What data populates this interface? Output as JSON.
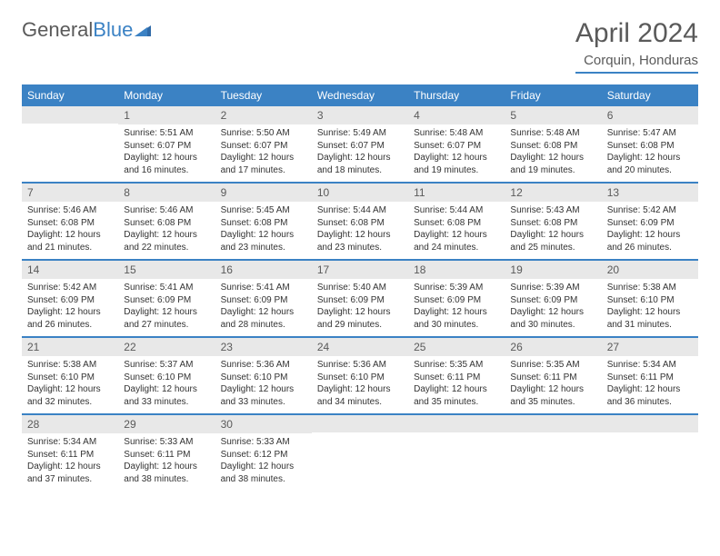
{
  "logo": {
    "text_gray": "General",
    "text_blue": "Blue"
  },
  "title": "April 2024",
  "location": "Corquin, Honduras",
  "colors": {
    "accent": "#3b82c4",
    "header_text": "#ffffff",
    "daynum_bg": "#e8e8e8",
    "text_muted": "#5a5a5a",
    "body_text": "#333333",
    "page_bg": "#ffffff"
  },
  "typography": {
    "title_fontsize": 30,
    "location_fontsize": 15,
    "header_fontsize": 12,
    "daynum_fontsize": 12,
    "info_fontsize": 10
  },
  "day_headers": [
    "Sunday",
    "Monday",
    "Tuesday",
    "Wednesday",
    "Thursday",
    "Friday",
    "Saturday"
  ],
  "weeks": [
    [
      null,
      {
        "n": "1",
        "sunrise": "5:51 AM",
        "sunset": "6:07 PM",
        "daylight": "12 hours and 16 minutes."
      },
      {
        "n": "2",
        "sunrise": "5:50 AM",
        "sunset": "6:07 PM",
        "daylight": "12 hours and 17 minutes."
      },
      {
        "n": "3",
        "sunrise": "5:49 AM",
        "sunset": "6:07 PM",
        "daylight": "12 hours and 18 minutes."
      },
      {
        "n": "4",
        "sunrise": "5:48 AM",
        "sunset": "6:07 PM",
        "daylight": "12 hours and 19 minutes."
      },
      {
        "n": "5",
        "sunrise": "5:48 AM",
        "sunset": "6:08 PM",
        "daylight": "12 hours and 19 minutes."
      },
      {
        "n": "6",
        "sunrise": "5:47 AM",
        "sunset": "6:08 PM",
        "daylight": "12 hours and 20 minutes."
      }
    ],
    [
      {
        "n": "7",
        "sunrise": "5:46 AM",
        "sunset": "6:08 PM",
        "daylight": "12 hours and 21 minutes."
      },
      {
        "n": "8",
        "sunrise": "5:46 AM",
        "sunset": "6:08 PM",
        "daylight": "12 hours and 22 minutes."
      },
      {
        "n": "9",
        "sunrise": "5:45 AM",
        "sunset": "6:08 PM",
        "daylight": "12 hours and 23 minutes."
      },
      {
        "n": "10",
        "sunrise": "5:44 AM",
        "sunset": "6:08 PM",
        "daylight": "12 hours and 23 minutes."
      },
      {
        "n": "11",
        "sunrise": "5:44 AM",
        "sunset": "6:08 PM",
        "daylight": "12 hours and 24 minutes."
      },
      {
        "n": "12",
        "sunrise": "5:43 AM",
        "sunset": "6:08 PM",
        "daylight": "12 hours and 25 minutes."
      },
      {
        "n": "13",
        "sunrise": "5:42 AM",
        "sunset": "6:09 PM",
        "daylight": "12 hours and 26 minutes."
      }
    ],
    [
      {
        "n": "14",
        "sunrise": "5:42 AM",
        "sunset": "6:09 PM",
        "daylight": "12 hours and 26 minutes."
      },
      {
        "n": "15",
        "sunrise": "5:41 AM",
        "sunset": "6:09 PM",
        "daylight": "12 hours and 27 minutes."
      },
      {
        "n": "16",
        "sunrise": "5:41 AM",
        "sunset": "6:09 PM",
        "daylight": "12 hours and 28 minutes."
      },
      {
        "n": "17",
        "sunrise": "5:40 AM",
        "sunset": "6:09 PM",
        "daylight": "12 hours and 29 minutes."
      },
      {
        "n": "18",
        "sunrise": "5:39 AM",
        "sunset": "6:09 PM",
        "daylight": "12 hours and 30 minutes."
      },
      {
        "n": "19",
        "sunrise": "5:39 AM",
        "sunset": "6:09 PM",
        "daylight": "12 hours and 30 minutes."
      },
      {
        "n": "20",
        "sunrise": "5:38 AM",
        "sunset": "6:10 PM",
        "daylight": "12 hours and 31 minutes."
      }
    ],
    [
      {
        "n": "21",
        "sunrise": "5:38 AM",
        "sunset": "6:10 PM",
        "daylight": "12 hours and 32 minutes."
      },
      {
        "n": "22",
        "sunrise": "5:37 AM",
        "sunset": "6:10 PM",
        "daylight": "12 hours and 33 minutes."
      },
      {
        "n": "23",
        "sunrise": "5:36 AM",
        "sunset": "6:10 PM",
        "daylight": "12 hours and 33 minutes."
      },
      {
        "n": "24",
        "sunrise": "5:36 AM",
        "sunset": "6:10 PM",
        "daylight": "12 hours and 34 minutes."
      },
      {
        "n": "25",
        "sunrise": "5:35 AM",
        "sunset": "6:11 PM",
        "daylight": "12 hours and 35 minutes."
      },
      {
        "n": "26",
        "sunrise": "5:35 AM",
        "sunset": "6:11 PM",
        "daylight": "12 hours and 35 minutes."
      },
      {
        "n": "27",
        "sunrise": "5:34 AM",
        "sunset": "6:11 PM",
        "daylight": "12 hours and 36 minutes."
      }
    ],
    [
      {
        "n": "28",
        "sunrise": "5:34 AM",
        "sunset": "6:11 PM",
        "daylight": "12 hours and 37 minutes."
      },
      {
        "n": "29",
        "sunrise": "5:33 AM",
        "sunset": "6:11 PM",
        "daylight": "12 hours and 38 minutes."
      },
      {
        "n": "30",
        "sunrise": "5:33 AM",
        "sunset": "6:12 PM",
        "daylight": "12 hours and 38 minutes."
      },
      null,
      null,
      null,
      null
    ]
  ],
  "labels": {
    "sunrise": "Sunrise:",
    "sunset": "Sunset:",
    "daylight": "Daylight:"
  }
}
